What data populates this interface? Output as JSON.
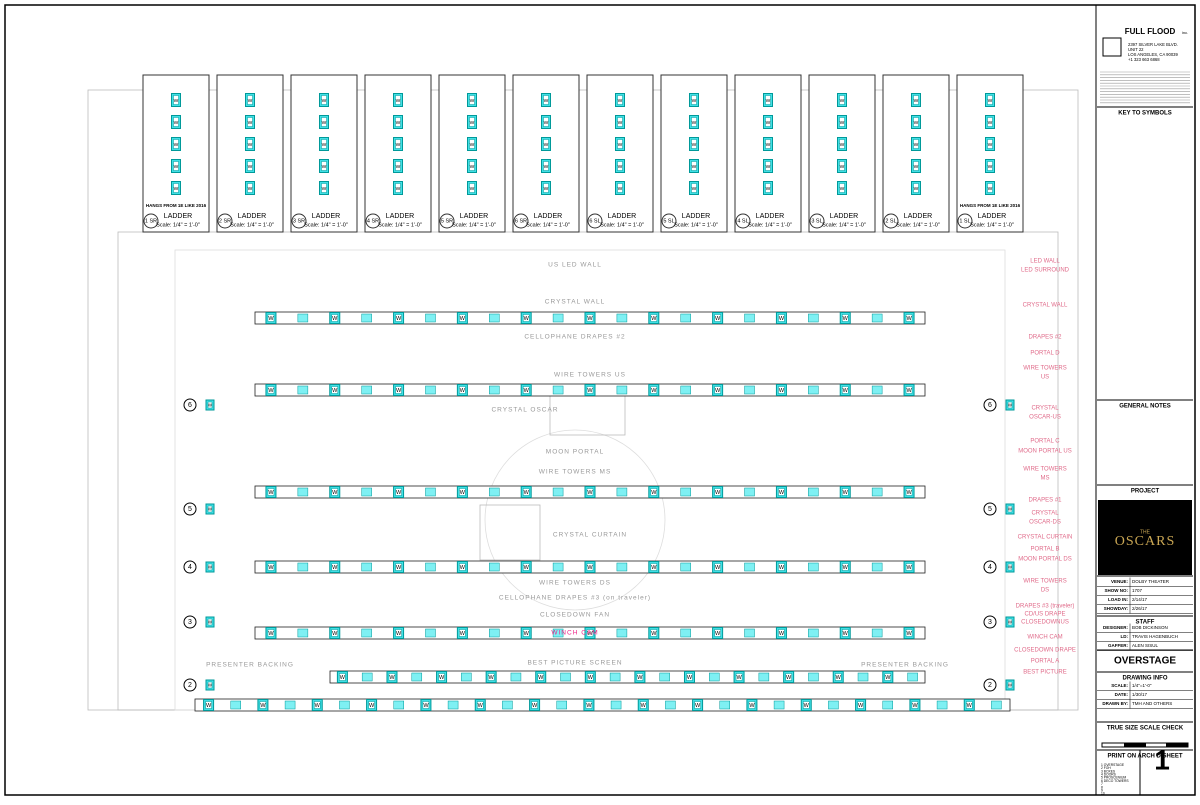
{
  "fixture_symbol": "W",
  "ladders": [
    {
      "position": "1 SR",
      "label": "LADDER",
      "scale": "Scale: 1/4\" = 1'-0\"",
      "note": "HANGS FROM 1E LIKE 2016"
    },
    {
      "position": "2 SR",
      "label": "LADDER",
      "scale": "Scale: 1/4\" = 1'-0\""
    },
    {
      "position": "3 SR",
      "label": "LADDER",
      "scale": "Scale: 1/4\" = 1'-0\""
    },
    {
      "position": "4 SR",
      "label": "LADDER",
      "scale": "Scale: 1/4\" = 1'-0\""
    },
    {
      "position": "5 SR",
      "label": "LADDER",
      "scale": "Scale: 1/4\" = 1'-0\""
    },
    {
      "position": "6 SR",
      "label": "LADDER",
      "scale": "Scale: 1/4\" = 1'-0\""
    },
    {
      "position": "6 SL",
      "label": "LADDER",
      "scale": "Scale: 1/4\" = 1'-0\""
    },
    {
      "position": "5 SL",
      "label": "LADDER",
      "scale": "Scale: 1/4\" = 1'-0\""
    },
    {
      "position": "4 SL",
      "label": "LADDER",
      "scale": "Scale: 1/4\" = 1'-0\""
    },
    {
      "position": "3 SL",
      "label": "LADDER",
      "scale": "Scale: 1/4\" = 1'-0\""
    },
    {
      "position": "2 SL",
      "label": "LADDER",
      "scale": "Scale: 1/4\" = 1'-0\""
    },
    {
      "position": "1 SL",
      "label": "LADDER",
      "scale": "Scale: 1/4\" = 1'-0\"",
      "note": "HANGS FROM 1E LIKE 2016"
    }
  ],
  "electrics": [
    "6",
    "5",
    "4",
    "3",
    "2"
  ],
  "stage_labels": [
    "US LED WALL",
    "CRYSTAL WALL",
    "CELLOPHANE DRAPES #2",
    "WIRE TOWERS US",
    "CRYSTAL OSCAR",
    "MOON PORTAL",
    "WIRE TOWERS MS",
    "CRYSTAL CURTAIN",
    "WIRE TOWERS DS",
    "CELLOPHANE DRAPES #3 (on traveler)",
    "CLOSEDOWN FAN",
    "WINCH CAM",
    "BEST PICTURE SCREEN",
    "PRESENTER BACKING",
    "PRESENTER BACKING"
  ],
  "side_labels": [
    "LED WALL",
    "LED SURROUND",
    "CRYSTAL WALL",
    "DRAPES #2",
    "PORTAL D",
    "WIRE TOWERS",
    "US",
    "CRYSTAL",
    "OSCAR-US",
    "PORTAL C",
    "MOON PORTAL US",
    "WIRE TOWERS",
    "MS",
    "DRAPES #1",
    "CRYSTAL",
    "OSCAR-DS",
    "CRYSTAL CURTAIN",
    "PORTAL B",
    "MOON PORTAL DS",
    "WIRE TOWERS",
    "DS",
    "DRAPES #3 (traveler)",
    "CD/US DRAPE",
    "CLOSEDOWNUS",
    "WINCH CAM",
    "CLOSEDOWN DRAPE",
    "PORTAL A",
    "BEST PICTURE"
  ],
  "title_block": {
    "company": "FULL FLOOD",
    "company_suffix": "inc.",
    "address": [
      "2397 SILVER LAKE BLVD.",
      "UNIT 22",
      "LOS ANGELES, CA 90039",
      "+1 323 663 6868"
    ],
    "key_to_symbols": "KEY TO SYMBOLS",
    "general_notes": "GENERAL NOTES",
    "project": "PROJECT",
    "logo_top": "THE",
    "logo": "OSCARS",
    "info": [
      [
        "VENUE:",
        "DOLBY THEATER"
      ],
      [
        "SHOW NO:",
        "1707"
      ],
      [
        "LOAD IN:",
        "2/14/17"
      ],
      [
        "SHOWDAY:",
        "2/26/17"
      ]
    ],
    "staff_title": "STAFF",
    "staff": [
      [
        "DESIGNER:",
        "BOB DICKINSON"
      ],
      [
        "LD:",
        "TRAVIS HAGENBUCH"
      ],
      [
        "GAFFER:",
        "ALEN SISUL"
      ]
    ],
    "sheet_title": "OVERSTAGE",
    "drawing_info": "DRAWING INFO",
    "drawing": [
      [
        "SCALE:",
        "1/4\"=1'-0\""
      ],
      [
        "DATE:",
        "1/30/17"
      ],
      [
        "DRAWN BY:",
        "TMH AND OTHERS"
      ]
    ],
    "scale_check": "TRUE SIZE SCALE CHECK",
    "print_note": "PRINT ON ARCH D SHEET",
    "sheets": [
      "1 OVERSTAGE",
      "2 FOH",
      "3 BOXES",
      "4 DOORS",
      "5 PROSCENIUM",
      "6 DECO TOWERS",
      "7",
      "8",
      "9",
      "10"
    ],
    "sheet_number": "1"
  }
}
